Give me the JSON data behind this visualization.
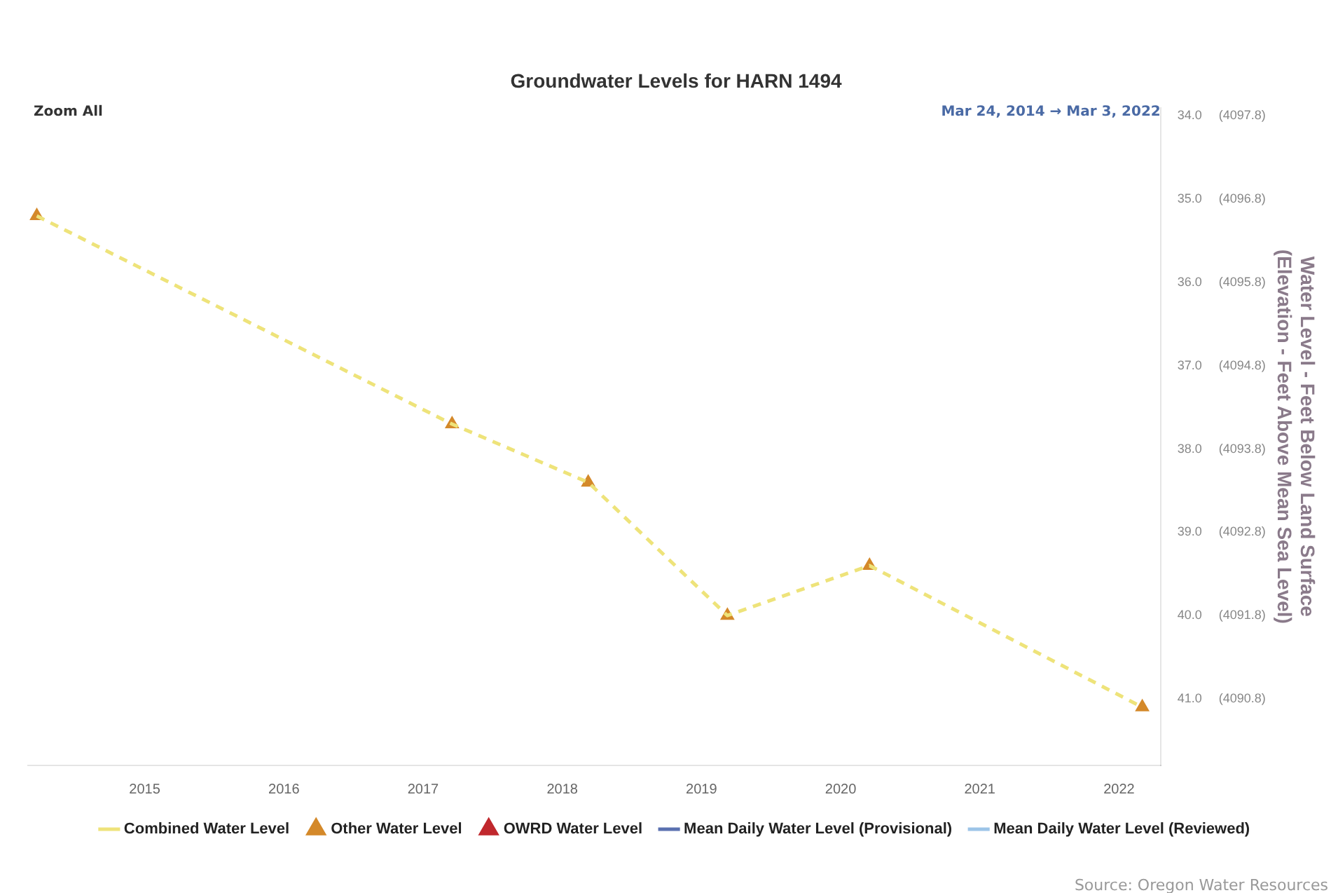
{
  "chart_data": {
    "type": "line",
    "title": "Groundwater Levels for HARN 1494",
    "y2label": "Water Level - Feet Below Land Surface\n(Elevation - Feet Above Mean Sea Level)",
    "x": [
      "2014-03-24",
      "2017-03-18",
      "2018-03-10",
      "2019-03-10",
      "2020-03-17",
      "2022-03-03"
    ],
    "xlim": [
      "2014-03-01",
      "2022-04-20"
    ],
    "xticks": [
      "2015",
      "2016",
      "2017",
      "2018",
      "2019",
      "2020",
      "2021",
      "2022"
    ],
    "ylim": [
      41.8,
      33.9
    ],
    "yticks": [
      {
        "value": 34,
        "label": "34.0"
      },
      {
        "value": 35,
        "label": "35.0"
      },
      {
        "value": 36,
        "label": "36.0"
      },
      {
        "value": 37,
        "label": "37.0"
      },
      {
        "value": 38,
        "label": "38.0"
      },
      {
        "value": 39,
        "label": "39.0"
      },
      {
        "value": 40,
        "label": "40.0"
      },
      {
        "value": 41,
        "label": "41.0"
      }
    ],
    "y2lim": [
      4090.0,
      4097.9
    ],
    "y2ticks": [
      {
        "value": 4097.8,
        "label": "(4097.8)"
      },
      {
        "value": 4096.8,
        "label": "(4096.8)"
      },
      {
        "value": 4095.8,
        "label": "(4095.8)"
      },
      {
        "value": 4094.8,
        "label": "(4094.8)"
      },
      {
        "value": 4093.8,
        "label": "(4093.8)"
      },
      {
        "value": 4092.8,
        "label": "(4092.8)"
      },
      {
        "value": 4091.8,
        "label": "(4091.8)"
      },
      {
        "value": 4090.8,
        "label": "(4090.8)"
      }
    ],
    "series": [
      {
        "name": "Combined Water Level",
        "color": "#eee37a",
        "line_style": "dashed",
        "marker": "none",
        "values": [
          35.2,
          37.7,
          38.4,
          40.0,
          39.4,
          41.1
        ]
      },
      {
        "name": "Other Water Level",
        "type": "scatter",
        "color": "#d4892a",
        "marker": "triangle",
        "values": [
          35.2,
          37.7,
          38.4,
          40.0,
          39.4,
          41.1
        ]
      },
      {
        "name": "OWRD Water Level",
        "type": "scatter",
        "color": "#c0282d",
        "marker": "triangle",
        "values": [
          null,
          null,
          null,
          null,
          null,
          null
        ]
      },
      {
        "name": "Mean Daily Water Level (Provisional)",
        "type": "line",
        "color": "#5a70b0",
        "line_style": "dashed",
        "marker": "none",
        "values": [
          null,
          null,
          null,
          null,
          null,
          null
        ]
      },
      {
        "name": "Mean Daily Water Level (Reviewed)",
        "type": "line",
        "color": "#9cc4e8",
        "line_style": "solid",
        "marker": "none",
        "values": [
          null,
          null,
          null,
          null,
          null,
          null
        ]
      }
    ],
    "grid": false,
    "legend": "bottom",
    "annotations": [
      "Zoom All",
      "Mar 24, 2014 → Mar 3, 2022",
      "Source: Oregon Water Resources"
    ]
  }
}
